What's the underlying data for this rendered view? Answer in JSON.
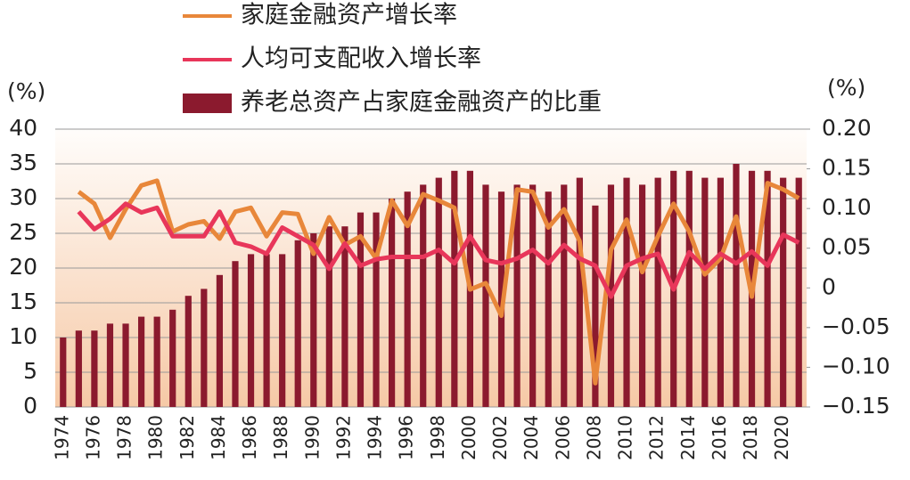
{
  "chart_data": {
    "type": "bar-line",
    "y_axis_label": "(%)",
    "y2_axis_label": "(%)",
    "categories": [
      "1974",
      null,
      "1976",
      null,
      "1978",
      null,
      "1980",
      null,
      "1982",
      null,
      "1984",
      null,
      "1986",
      null,
      "1988",
      null,
      "1990",
      null,
      "1992",
      null,
      "1994",
      null,
      "1996",
      null,
      "1998",
      null,
      "2000",
      null,
      "2002",
      null,
      "2004",
      null,
      "2006",
      null,
      "2008",
      null,
      "2010",
      null,
      "2012",
      null,
      "2014",
      null,
      "2016",
      null,
      "2018",
      null,
      "2020",
      null
    ],
    "ylim": [
      0,
      40
    ],
    "yticks": [
      0,
      5,
      10,
      15,
      20,
      25,
      30,
      35,
      40
    ],
    "y2lim": [
      -0.15,
      0.2
    ],
    "y2ticks": [
      {
        "value": 0.2,
        "label": "0.20"
      },
      0.15,
      {
        "value": 0.1,
        "label": "0.10"
      },
      0.05,
      0,
      {
        "value": -0.05,
        "label": "−0.05"
      },
      {
        "value": -0.1,
        "label": "−0.10"
      },
      {
        "value": -0.15,
        "label": "−0.15"
      }
    ],
    "grid": true,
    "series": [
      {
        "name": "家庭金融资产增长率",
        "type": "line",
        "axis": "y2",
        "color": "#e8873a",
        "values": [
          null,
          0.121,
          0.106,
          0.063,
          0.099,
          0.129,
          0.135,
          0.071,
          0.08,
          0.084,
          0.062,
          0.096,
          0.101,
          0.065,
          0.095,
          0.093,
          0.043,
          0.089,
          0.054,
          0.065,
          0.037,
          0.11,
          0.078,
          0.118,
          0.11,
          0.101,
          -0.002,
          0.006,
          -0.035,
          0.124,
          0.121,
          0.076,
          0.099,
          0.059,
          -0.12,
          0.048,
          0.086,
          0.02,
          0.065,
          0.106,
          0.071,
          0.017,
          0.037,
          0.09,
          -0.011,
          0.132,
          0.124,
          0.113
        ]
      },
      {
        "name": "人均可支配收入增长率",
        "type": "line",
        "axis": "y2",
        "color": "#e8365a",
        "values": [
          null,
          0.096,
          0.074,
          0.087,
          0.106,
          0.095,
          0.101,
          0.065,
          0.065,
          0.065,
          0.096,
          0.057,
          0.052,
          0.043,
          0.076,
          0.065,
          0.054,
          0.024,
          0.056,
          0.028,
          0.036,
          0.039,
          0.039,
          0.039,
          0.048,
          0.031,
          0.065,
          0.035,
          0.031,
          0.037,
          0.048,
          0.031,
          0.054,
          0.037,
          0.028,
          -0.011,
          0.028,
          0.037,
          0.043,
          -0.002,
          0.045,
          0.024,
          0.043,
          0.031,
          0.046,
          0.028,
          0.067,
          0.057
        ]
      },
      {
        "name": "养老总资产占家庭金融资产的比重",
        "type": "bar",
        "axis": "y",
        "color": "#8b1a2e",
        "values": [
          10,
          11,
          11,
          12,
          12,
          13,
          13,
          14,
          16,
          17,
          19,
          21,
          22,
          22,
          22,
          24,
          25,
          26,
          26,
          28,
          28,
          30,
          31,
          32,
          33,
          34,
          34,
          32,
          31,
          32,
          32,
          31,
          32,
          33,
          29,
          32,
          33,
          32,
          33,
          34,
          34,
          33,
          33,
          35,
          34,
          34,
          33,
          33
        ]
      }
    ]
  }
}
